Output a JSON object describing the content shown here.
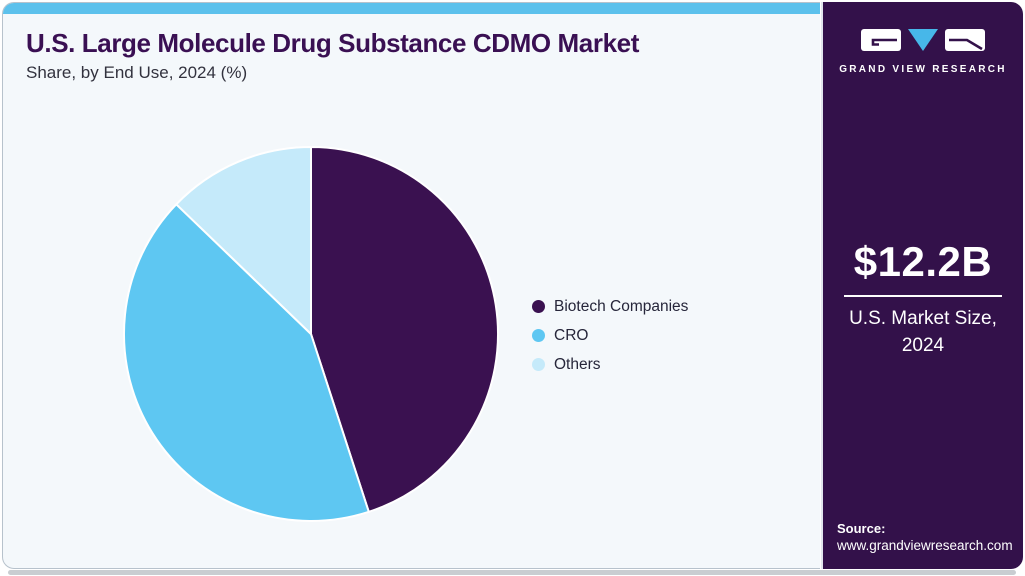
{
  "header": {
    "title": "U.S. Large Molecule Drug Substance CDMO Market",
    "subtitle": "Share, by End Use, 2024 (%)"
  },
  "chart_data": {
    "type": "pie",
    "title": "U.S. Large Molecule Drug Substance CDMO Market Share, by End Use, 2024 (%)",
    "unit": "%",
    "start_angle_deg": 0,
    "direction": "clockwise",
    "legend_position": "right",
    "data_labels_shown": false,
    "slices": [
      {
        "label": "Biotech Companies",
        "value": 45.0,
        "color": "#3a1150"
      },
      {
        "label": "CRO",
        "value": 42.2,
        "color": "#5ec7f2"
      },
      {
        "label": "Others",
        "value": 12.8,
        "color": "#c5eafa"
      }
    ]
  },
  "sidebar": {
    "brand": "GRAND VIEW RESEARCH",
    "market_size_value": "$12.2B",
    "market_label_line1": "U.S. Market Size,",
    "market_label_line2": "2024",
    "source_label": "Source:",
    "source_url": "www.grandviewresearch.com"
  },
  "colors": {
    "accent_bar": "#5cc1ec",
    "panel_background": "#f4f8fb",
    "sidebar_background": "#33114a",
    "title_text": "#3a1053",
    "slice_stroke": "#ffffff",
    "logo_triangle": "#47b7e9"
  }
}
